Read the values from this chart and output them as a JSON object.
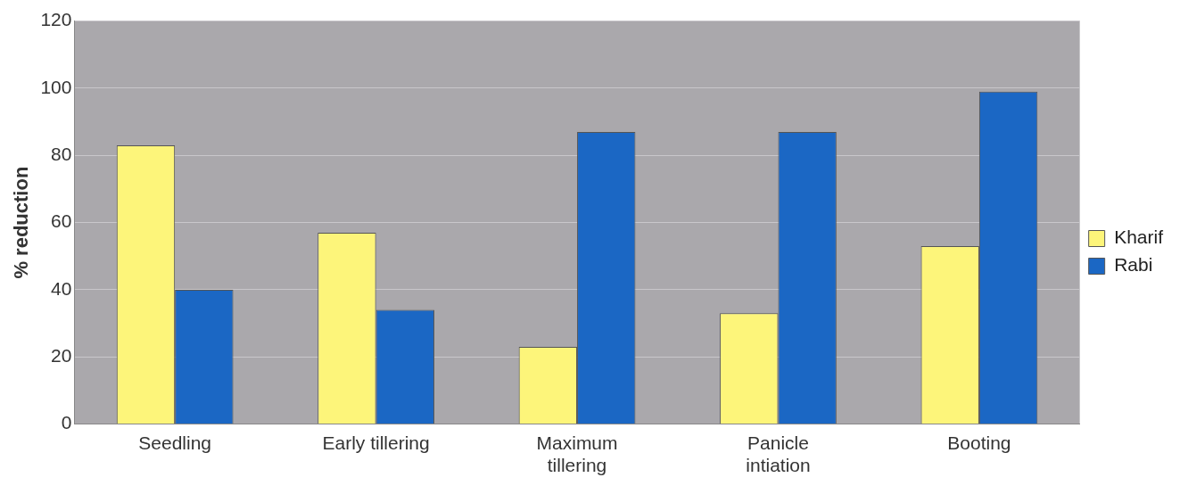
{
  "chart_data": {
    "type": "bar",
    "ylabel": "% reduction",
    "categories": [
      "Seedling",
      "Early tillering",
      "Maximum tillering",
      "Panicle intiation",
      "Booting"
    ],
    "series": [
      {
        "name": "Kharif",
        "color": "#fdf57a",
        "values": [
          83,
          57,
          23,
          33,
          53
        ]
      },
      {
        "name": "Rabi",
        "color": "#1b67c4",
        "values": [
          40,
          34,
          87,
          87,
          99
        ]
      }
    ],
    "ylim": [
      0,
      120
    ],
    "yticks": [
      0,
      20,
      40,
      60,
      80,
      100,
      120
    ],
    "grid": "y",
    "legend": "right"
  }
}
